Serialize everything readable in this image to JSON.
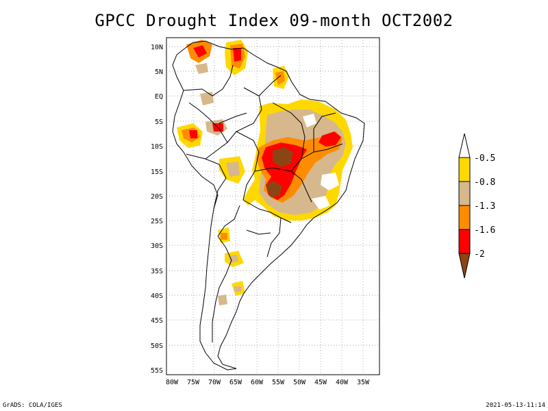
{
  "title": "GPCC Drought Index 09-month OCT2002",
  "footer": {
    "left": "GrADS: COLA/IGES",
    "right": "2021-05-13-11:14"
  },
  "axes": {
    "lat_labels": [
      "10N",
      "5N",
      "EQ",
      "5S",
      "10S",
      "15S",
      "20S",
      "25S",
      "30S",
      "35S",
      "40S",
      "45S",
      "50S",
      "55S"
    ],
    "lon_labels": [
      "80W",
      "75W",
      "70W",
      "65W",
      "60W",
      "55W",
      "50W",
      "45W",
      "40W",
      "35W"
    ]
  },
  "colorbar": {
    "labels": [
      "-0.5",
      "-0.8",
      "-1.3",
      "-1.6",
      "-2"
    ],
    "colors": [
      "#ffffff",
      "#ffd800",
      "#d6b88c",
      "#ff8c00",
      "#ff0000",
      "#8b4513"
    ]
  },
  "palette": {
    "yellow": "#ffd800",
    "tan": "#d6b88c",
    "orange": "#ff8c00",
    "red": "#ff0000",
    "brown": "#8b4513"
  }
}
